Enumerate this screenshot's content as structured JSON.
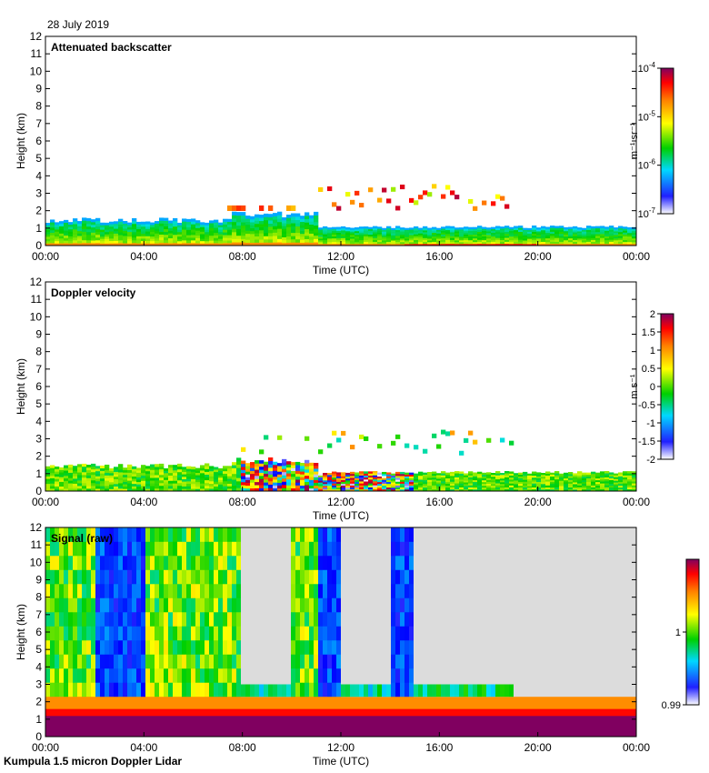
{
  "date_label": "28 July 2019",
  "footer_label": "Kumpula 1.5 micron Doppler Lidar",
  "colors": {
    "jet": [
      "#ffffff",
      "#0000ff",
      "#00e0ff",
      "#00d000",
      "#ffff00",
      "#ff8000",
      "#ff0000",
      "#800060"
    ],
    "missing": "#dcdcdc"
  },
  "chart_data": [
    {
      "type": "heatmap",
      "title": "Attenuated backscatter",
      "xlabel": "Time (UTC)",
      "ylabel": "Height (km)",
      "xticks": [
        "00:00",
        "04:00",
        "08:00",
        "12:00",
        "16:00",
        "20:00",
        "00:00"
      ],
      "xlim_hours": [
        0,
        24
      ],
      "ylim": [
        0,
        12
      ],
      "yticks": [
        0,
        1,
        2,
        3,
        4,
        5,
        6,
        7,
        8,
        9,
        10,
        11,
        12
      ],
      "colorbar": {
        "label": "m⁻¹ sr⁻¹",
        "scale": "log",
        "range": [
          1e-07,
          0.0001
        ],
        "ticks": [
          {
            "base": "10",
            "exp": "-4",
            "value": 0.0001
          },
          {
            "base": "10",
            "exp": "-5",
            "value": 1e-05
          },
          {
            "base": "10",
            "exp": "-6",
            "value": 1e-06
          },
          {
            "base": "10",
            "exp": "-7",
            "value": 1e-07
          }
        ]
      },
      "features": [
        {
          "name": "boundary layer",
          "hours": [
            0,
            24
          ],
          "height_km": [
            0,
            1.6
          ]
        },
        {
          "name": "cloud layer",
          "hours": [
            11,
            19
          ],
          "height_km": [
            2.0,
            3.5
          ]
        }
      ]
    },
    {
      "type": "heatmap",
      "title": "Doppler velocity",
      "xlabel": "Time (UTC)",
      "ylabel": "Height (km)",
      "xticks": [
        "00:00",
        "04:00",
        "08:00",
        "12:00",
        "16:00",
        "20:00",
        "00:00"
      ],
      "xlim_hours": [
        0,
        24
      ],
      "ylim": [
        0,
        12
      ],
      "yticks": [
        0,
        1,
        2,
        3,
        4,
        5,
        6,
        7,
        8,
        9,
        10,
        11,
        12
      ],
      "colorbar": {
        "label": "m s⁻¹",
        "scale": "linear",
        "range": [
          -2,
          2
        ],
        "ticks": [
          {
            "text": "2",
            "value": 2
          },
          {
            "text": "1.5",
            "value": 1.5
          },
          {
            "text": "1",
            "value": 1
          },
          {
            "text": "0.5",
            "value": 0.5
          },
          {
            "text": "0",
            "value": 0
          },
          {
            "text": "-0.5",
            "value": -0.5
          },
          {
            "text": "-1",
            "value": -1
          },
          {
            "text": "-1.5",
            "value": -1.5
          },
          {
            "text": "-2",
            "value": -2
          }
        ]
      }
    },
    {
      "type": "heatmap",
      "title": "Signal (raw)",
      "xlabel": "Time (UTC)",
      "ylabel": "Height (km)",
      "xticks": [
        "00:00",
        "04:00",
        "08:00",
        "12:00",
        "16:00",
        "20:00",
        "00:00"
      ],
      "xlim_hours": [
        0,
        24
      ],
      "ylim": [
        0,
        12
      ],
      "yticks": [
        0,
        1,
        2,
        3,
        4,
        5,
        6,
        7,
        8,
        9,
        10,
        11,
        12
      ],
      "colorbar": {
        "label": "",
        "scale": "linear",
        "range": [
          0.99,
          1.01
        ],
        "ticks": [
          {
            "text": "1",
            "value": 1
          },
          {
            "text": "0.99",
            "value": 0.99
          }
        ]
      }
    }
  ]
}
